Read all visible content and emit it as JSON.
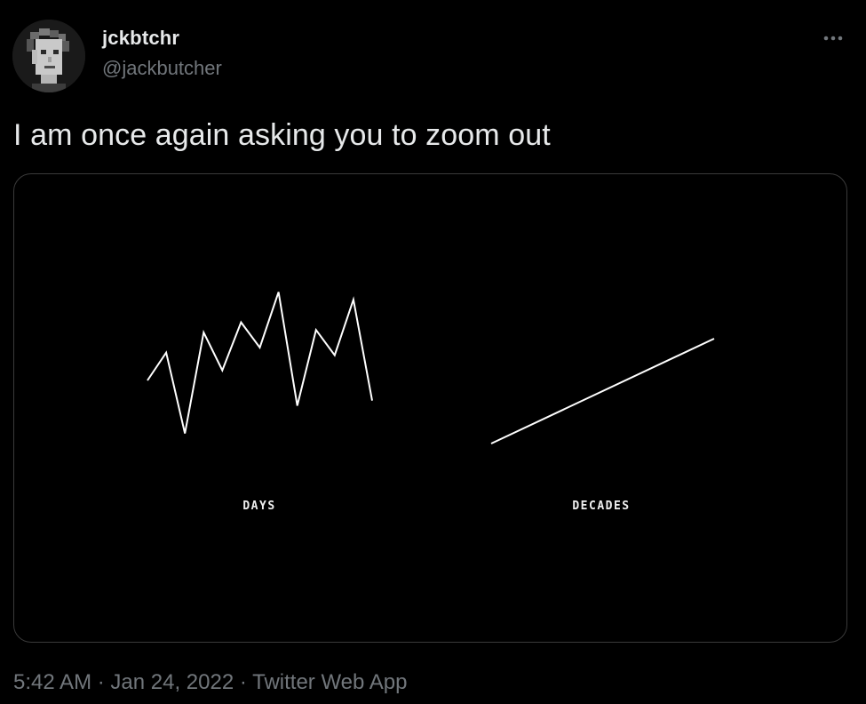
{
  "author": {
    "display_name": "jckbtchr",
    "handle": "@jackbutcher",
    "avatar_icon": "pixel-art-avatar-icon"
  },
  "tweet": {
    "text": "I am once again asking you to zoom out",
    "time": "5:42 AM",
    "separator": "·",
    "date": "Jan 24, 2022",
    "source": "Twitter Web App"
  },
  "more_icon": "more-options-icon",
  "colors": {
    "background": "#000000",
    "primary_text": "#e7e9ea",
    "secondary_text": "#71767b",
    "line": "#ffffff",
    "media_border": "#3a3a3a"
  },
  "chart_data": [
    {
      "type": "line",
      "xlabel": "DAYS",
      "grid": false,
      "axes_visible": false,
      "x": [
        0,
        1,
        2,
        3,
        4,
        5,
        6,
        7,
        8,
        9,
        10,
        11,
        12
      ],
      "y": [
        0.62,
        0.84,
        0.2,
        1.0,
        0.7,
        1.08,
        0.88,
        1.32,
        0.42,
        1.02,
        0.82,
        1.26,
        0.46
      ]
    },
    {
      "type": "line",
      "xlabel": "DECADES",
      "grid": false,
      "axes_visible": false,
      "x": [
        0,
        1
      ],
      "y": [
        0,
        1
      ]
    }
  ]
}
